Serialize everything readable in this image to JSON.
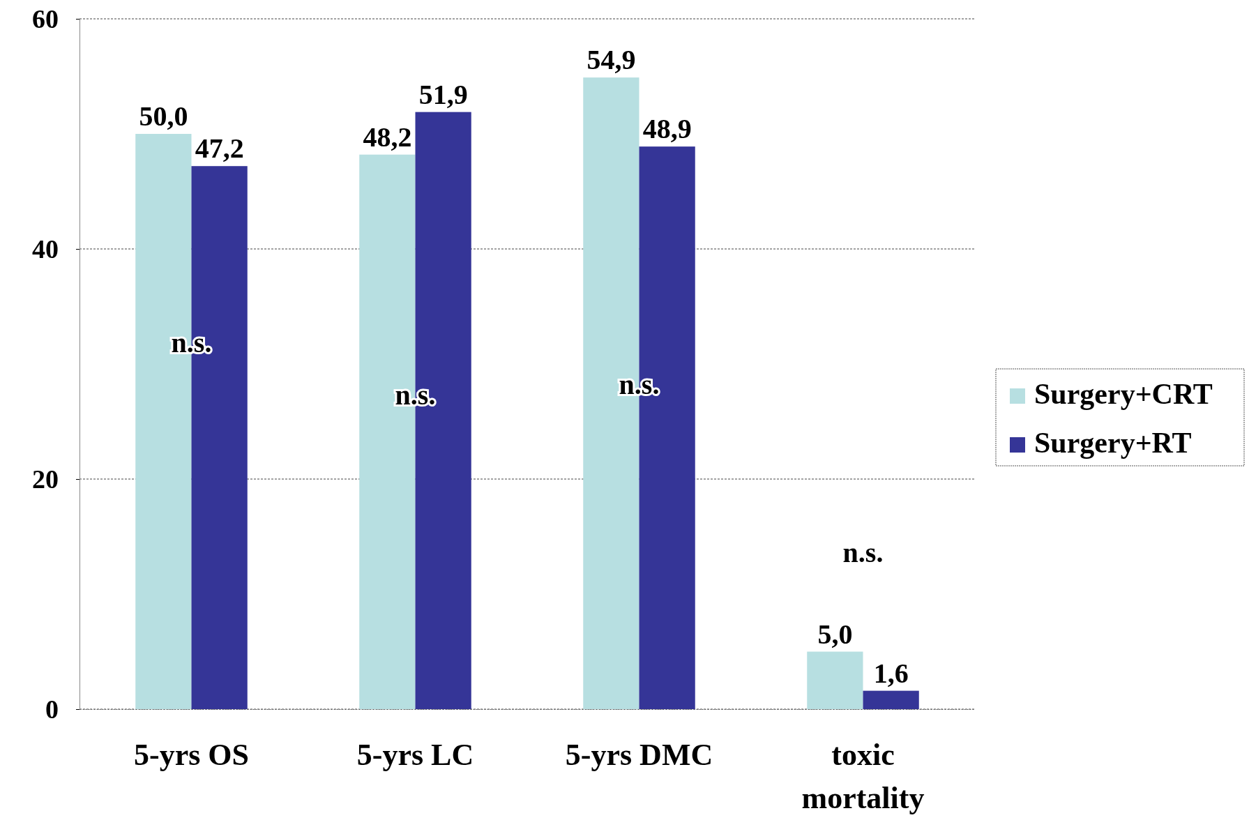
{
  "chart_data": {
    "type": "bar",
    "categories": [
      "5-yrs OS",
      "5-yrs LC",
      "5-yrs DMC",
      "toxic mortality"
    ],
    "series": [
      {
        "name": "Surgery+CRT",
        "color": "#b7dfe1",
        "values": [
          50.0,
          48.2,
          54.9,
          5.0
        ],
        "value_labels": [
          "50,0",
          "48,2",
          "54,9",
          "5,0"
        ]
      },
      {
        "name": "Surgery+RT",
        "color": "#353597",
        "values": [
          47.2,
          51.9,
          48.9,
          1.6
        ],
        "value_labels": [
          "47,2",
          "51,9",
          "48,9",
          "1,6"
        ]
      }
    ],
    "ylim": [
      0,
      60
    ],
    "yticks": [
      0,
      20,
      40,
      60
    ],
    "grid": "y",
    "legend": "right",
    "annotations": [
      "n.s.",
      "n.s.",
      "n.s.",
      "n.s."
    ]
  }
}
